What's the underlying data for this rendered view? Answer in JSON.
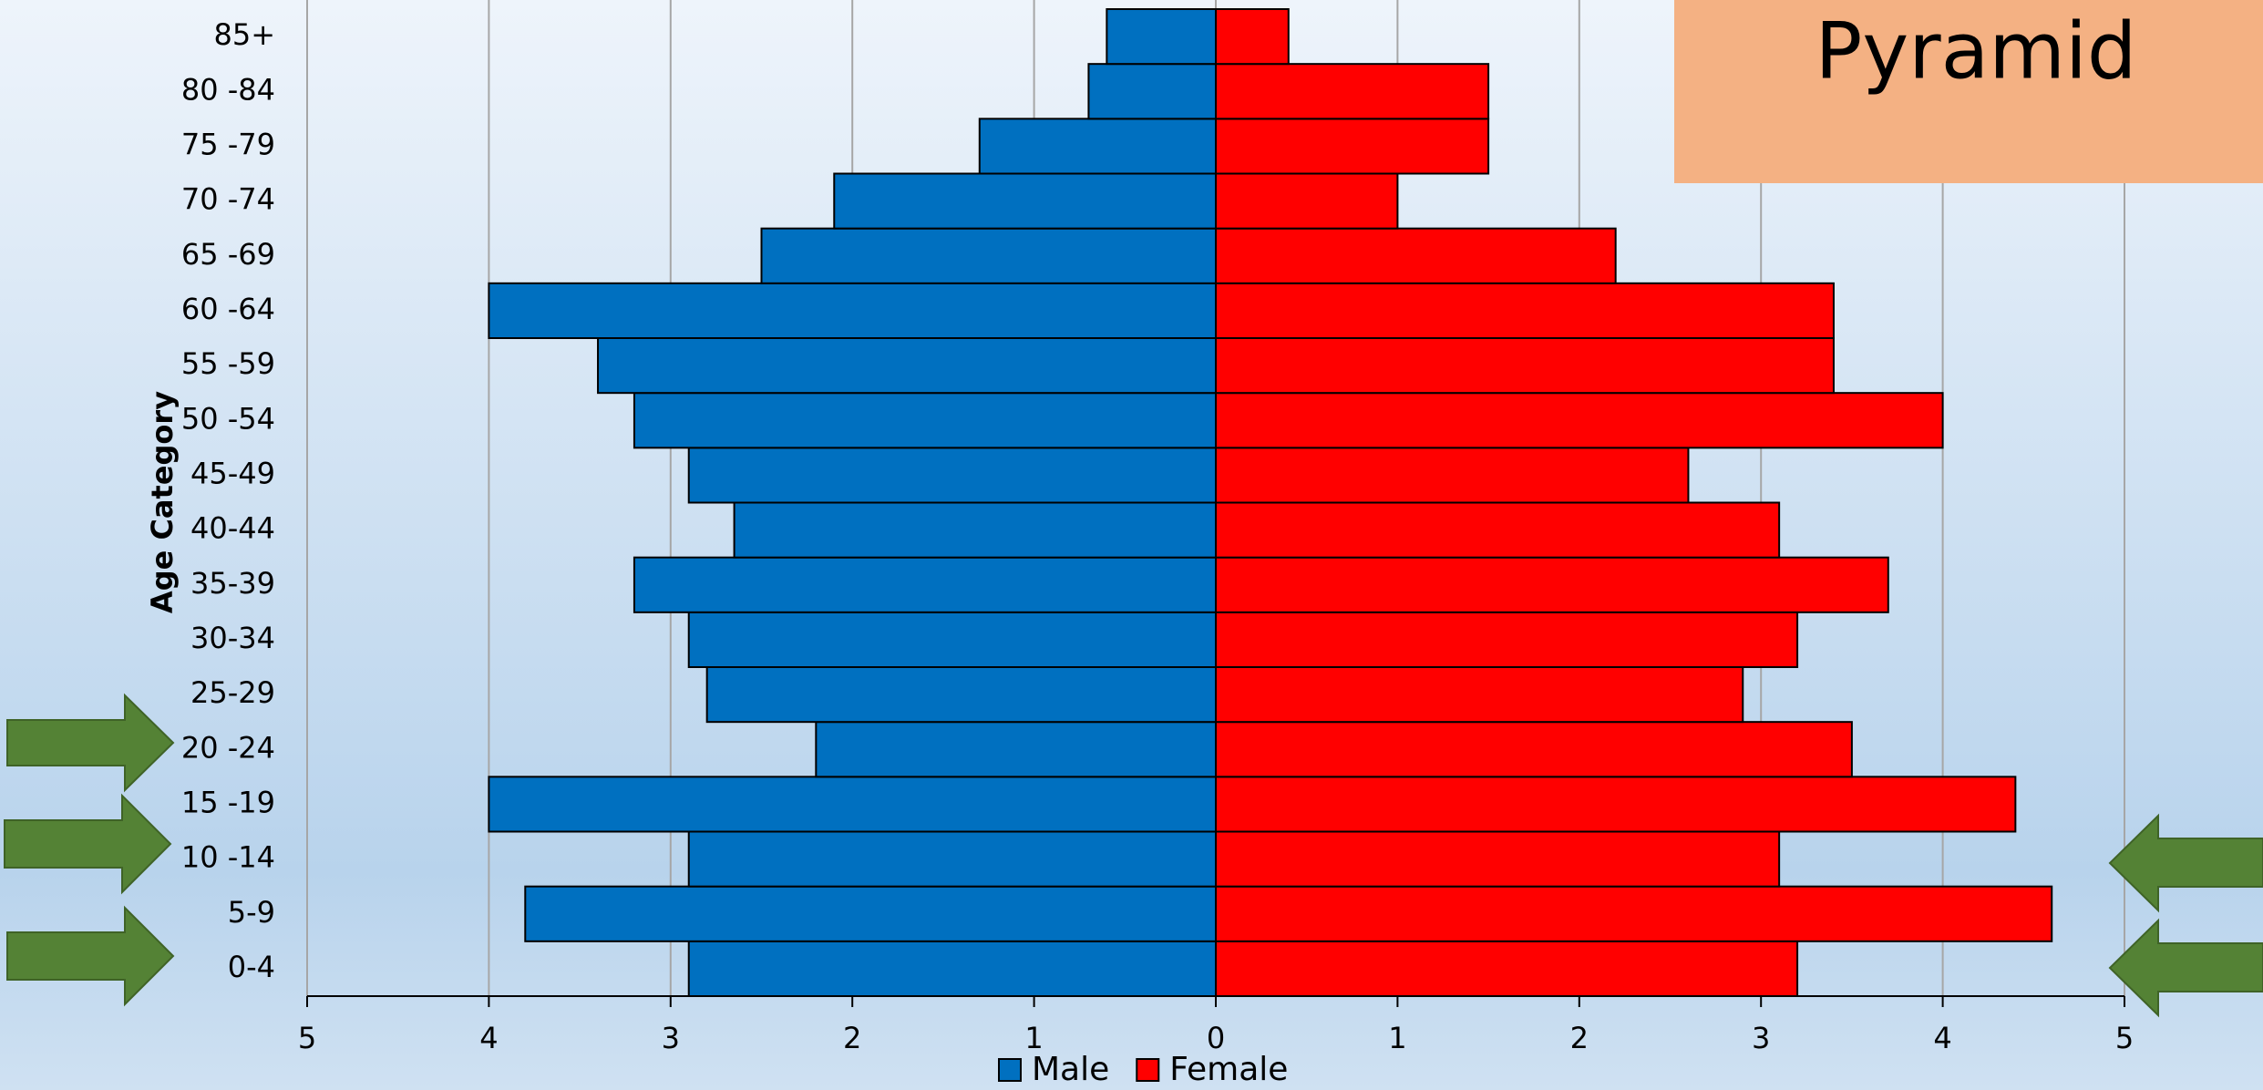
{
  "chart_data": {
    "type": "pyramid",
    "title": "Pyramid",
    "y_axis_label": "Age Category",
    "categories": [
      "0-4",
      "5-9",
      "10 -14",
      "15 -19",
      "20 -24",
      "25-29",
      "30-34",
      "35-39",
      "40-44",
      "45-49",
      "50 -54",
      "55 -59",
      "60 -64",
      "65 -69",
      "70 -74",
      "75 -79",
      "80 -84",
      "85+"
    ],
    "series": [
      {
        "name": "Male",
        "color": "#0070c0",
        "values": [
          -2.9,
          -3.8,
          -2.9,
          -4.0,
          -2.2,
          -2.8,
          -2.9,
          -3.2,
          -2.65,
          -2.9,
          -3.2,
          -3.4,
          -4.0,
          -2.5,
          -2.1,
          -1.3,
          -0.7,
          -0.6
        ]
      },
      {
        "name": "Female",
        "color": "#ff0000",
        "values": [
          3.2,
          4.6,
          3.1,
          4.4,
          3.5,
          2.9,
          3.2,
          3.7,
          3.1,
          2.6,
          4.0,
          3.4,
          3.4,
          2.2,
          1.0,
          1.5,
          1.5,
          0.4
        ]
      }
    ],
    "xlim": [
      -5,
      5
    ],
    "xticks": [
      {
        "value": -5,
        "label": "5"
      },
      {
        "value": -4,
        "label": "4"
      },
      {
        "value": -3,
        "label": "3"
      },
      {
        "value": -2,
        "label": "2"
      },
      {
        "value": -1,
        "label": "1"
      },
      0,
      1,
      2,
      3,
      4,
      5
    ],
    "grid": true
  }
}
